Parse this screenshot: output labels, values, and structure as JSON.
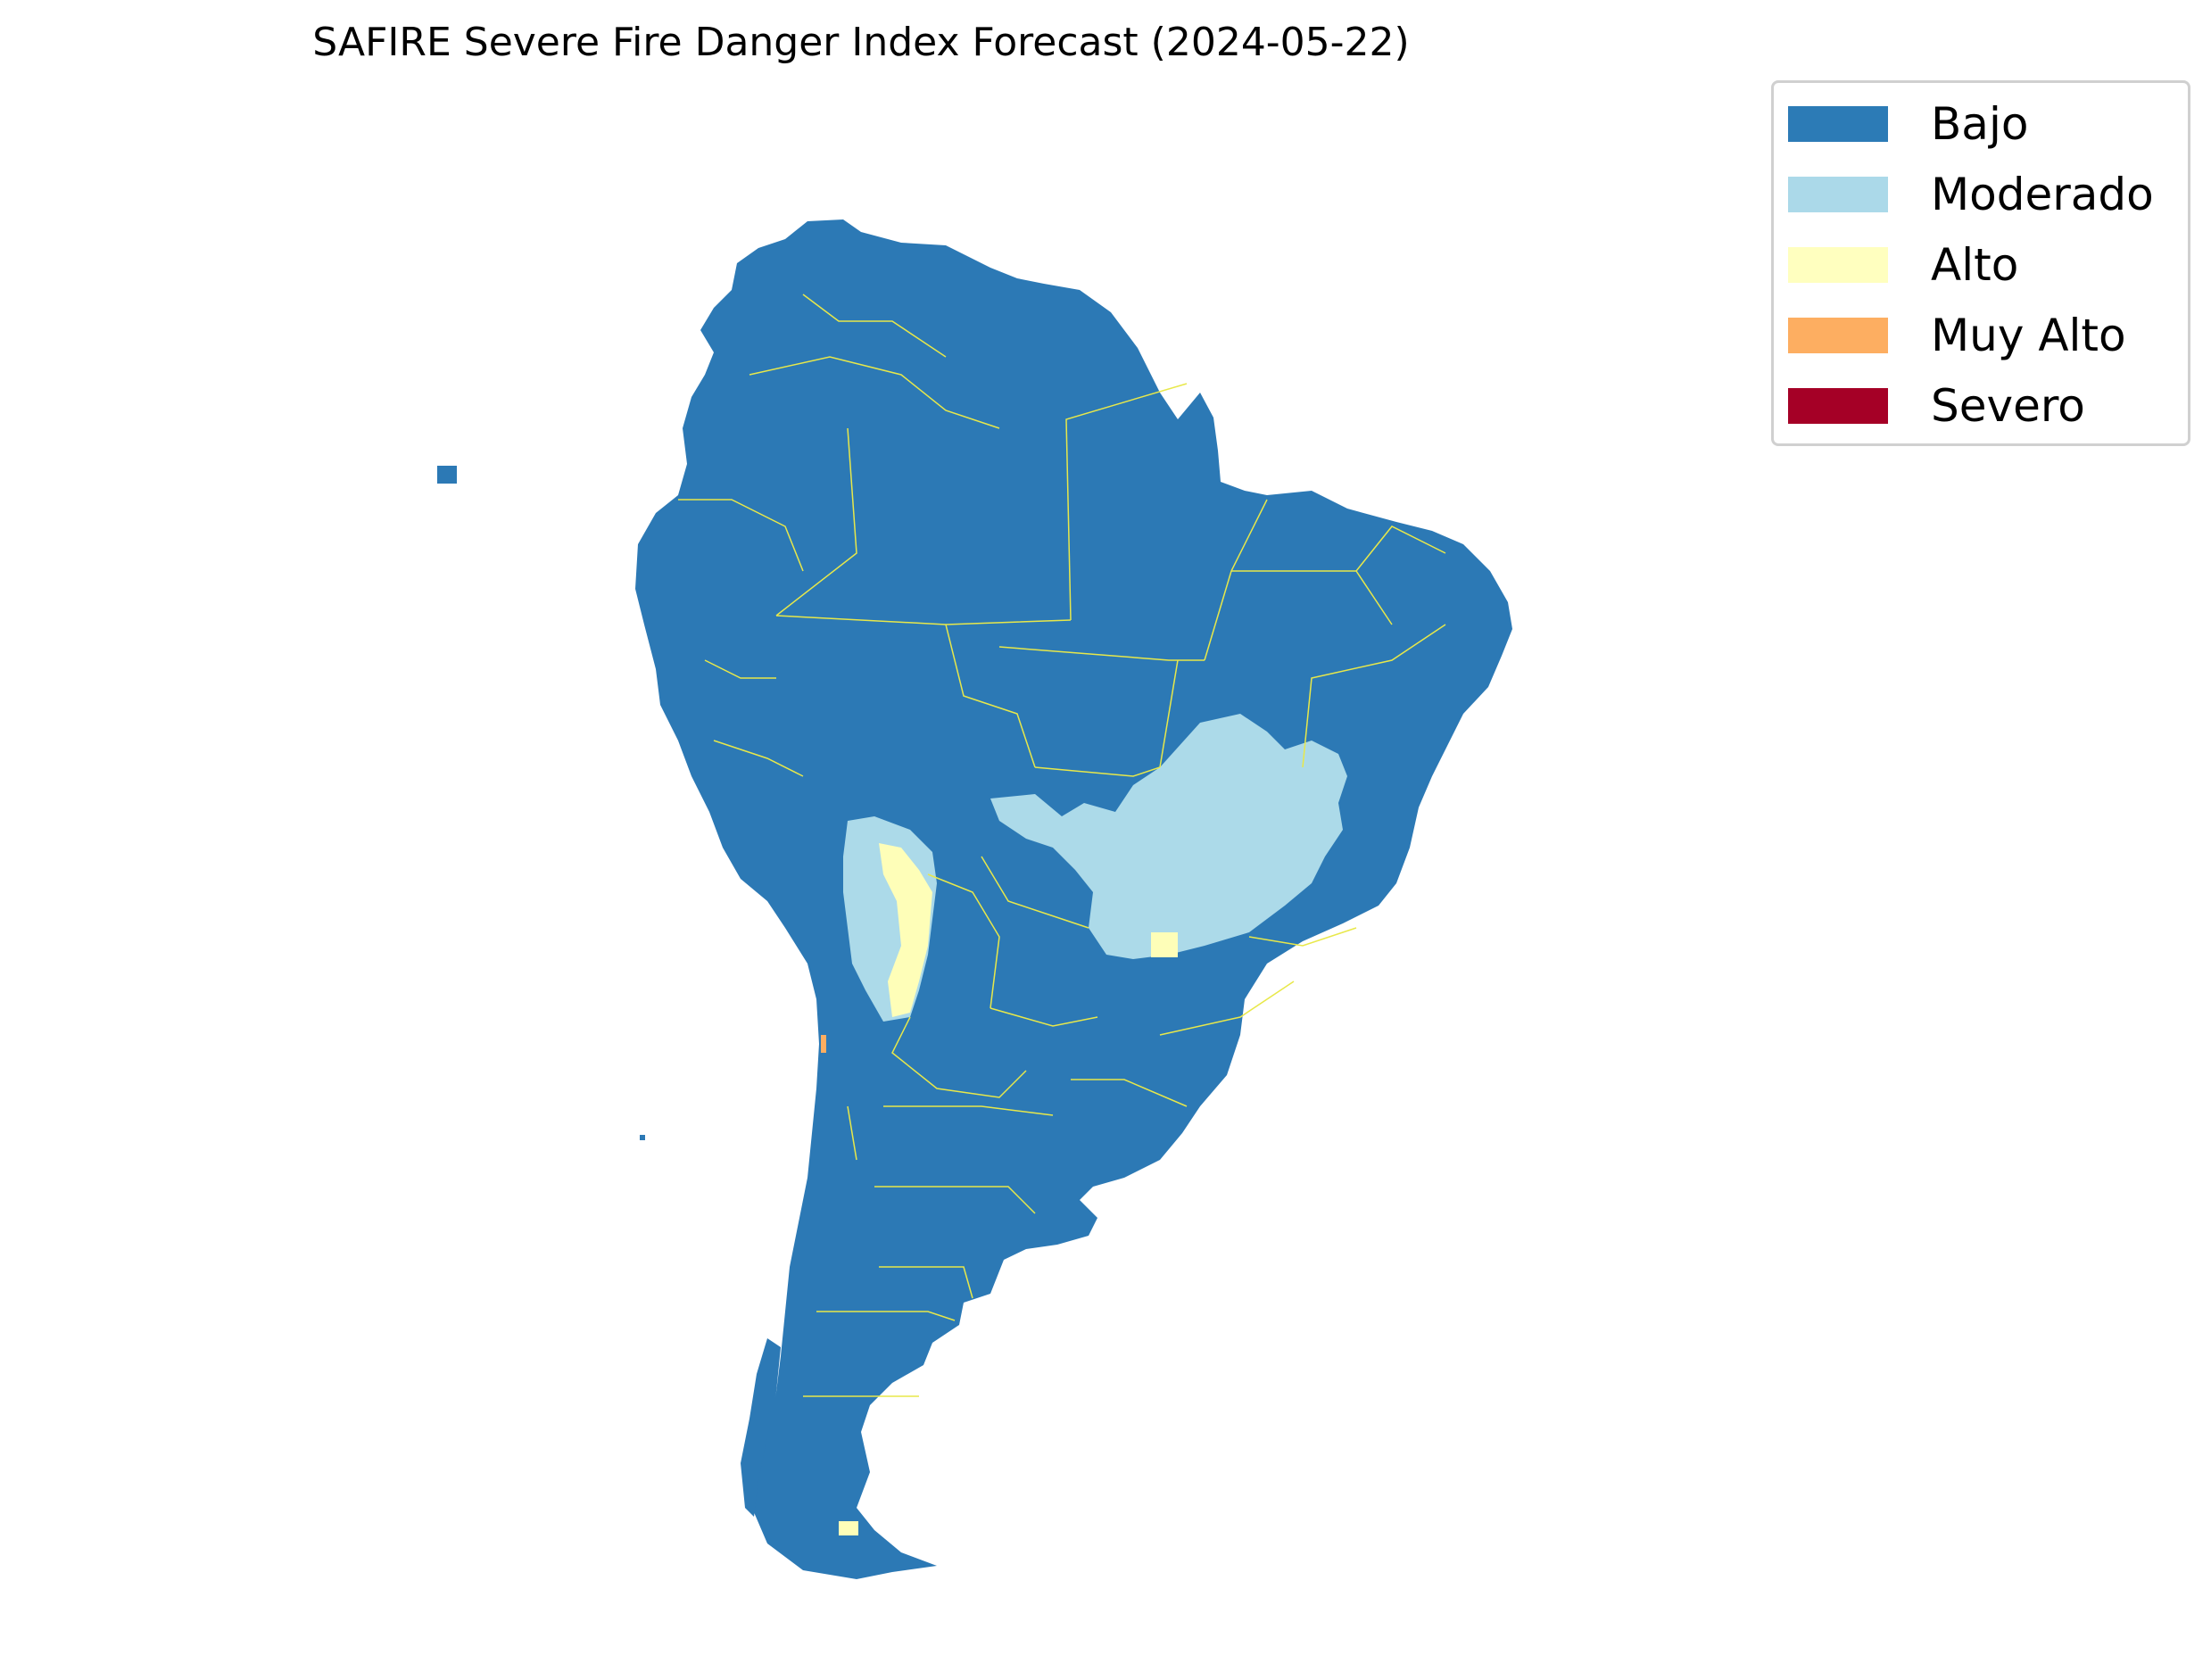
{
  "map": {
    "title": "SAFIRE Severe Fire Danger Index Forecast (2024-05-22)",
    "region_colors": {
      "continent": "#2c79b5",
      "moderado": "#acdae9",
      "alto": "#fefeb8",
      "muy_alto": "#fdae61",
      "borders": "#e8e84a"
    }
  },
  "legend": {
    "items": [
      {
        "label": "Bajo",
        "color": "#2c7bb6"
      },
      {
        "label": "Moderado",
        "color": "#abd9e9"
      },
      {
        "label": "Alto",
        "color": "#ffffbf"
      },
      {
        "label": "Muy Alto",
        "color": "#fdae61"
      },
      {
        "label": "Severo",
        "color": "#a50026"
      }
    ]
  }
}
